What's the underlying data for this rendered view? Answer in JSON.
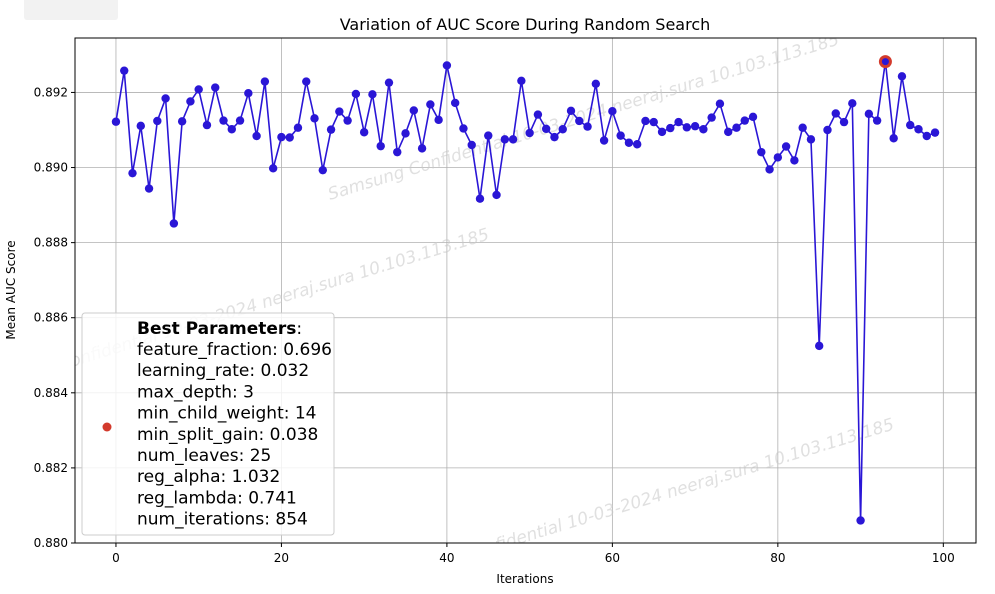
{
  "watermark": {
    "text": "Samsung Confidential 10-03-2024 neeraj.sura 10.103.113.185"
  },
  "chart_data": {
    "type": "line",
    "title": "Variation of AUC Score During Random Search",
    "xlabel": "Iterations",
    "ylabel": "Mean AUC Score",
    "xlim": [
      -4.95,
      103.95
    ],
    "ylim": [
      0.88,
      0.89345
    ],
    "xticks": [
      0,
      20,
      40,
      60,
      80,
      100
    ],
    "yticks": [
      0.88,
      0.882,
      0.884,
      0.886,
      0.888,
      0.89,
      0.892
    ],
    "ytick_labels": [
      "0.880",
      "0.882",
      "0.884",
      "0.886",
      "0.888",
      "0.890",
      "0.892"
    ],
    "grid": true,
    "legend_position": "lower-left",
    "series": [
      {
        "color": "#2a16d6",
        "marker": "circle",
        "x": [
          0,
          1,
          2,
          3,
          4,
          5,
          6,
          7,
          8,
          9,
          10,
          11,
          12,
          13,
          14,
          15,
          16,
          17,
          18,
          19,
          20,
          21,
          22,
          23,
          24,
          25,
          26,
          27,
          28,
          29,
          30,
          31,
          32,
          33,
          34,
          35,
          36,
          37,
          38,
          39,
          40,
          41,
          42,
          43,
          44,
          45,
          46,
          47,
          48,
          49,
          50,
          51,
          52,
          53,
          54,
          55,
          56,
          57,
          58,
          59,
          60,
          61,
          62,
          63,
          64,
          65,
          66,
          67,
          68,
          69,
          70,
          71,
          72,
          73,
          74,
          75,
          76,
          77,
          78,
          79,
          80,
          81,
          82,
          83,
          84,
          85,
          86,
          87,
          88,
          89,
          90,
          91,
          92,
          93,
          94,
          95,
          96,
          97,
          98,
          99
        ],
        "y": [
          0.89122,
          0.89258,
          0.88985,
          0.89111,
          0.88944,
          0.89124,
          0.89184,
          0.88851,
          0.89123,
          0.89176,
          0.89208,
          0.89113,
          0.89213,
          0.89125,
          0.89102,
          0.89125,
          0.89198,
          0.89084,
          0.89229,
          0.88998,
          0.89081,
          0.8908,
          0.89106,
          0.89229,
          0.89131,
          0.88993,
          0.89101,
          0.89149,
          0.89125,
          0.89196,
          0.89094,
          0.89195,
          0.89057,
          0.89226,
          0.89041,
          0.89091,
          0.89152,
          0.89051,
          0.89168,
          0.89127,
          0.89272,
          0.89172,
          0.89104,
          0.8906,
          0.88917,
          0.89085,
          0.88927,
          0.89075,
          0.89075,
          0.89231,
          0.89092,
          0.89141,
          0.89103,
          0.89081,
          0.89102,
          0.89151,
          0.89124,
          0.89109,
          0.89223,
          0.89072,
          0.8915,
          0.89085,
          0.89066,
          0.89062,
          0.89124,
          0.89121,
          0.89095,
          0.89105,
          0.89121,
          0.89107,
          0.8911,
          0.89102,
          0.89133,
          0.8917,
          0.89095,
          0.89106,
          0.89125,
          0.89135,
          0.89041,
          0.88995,
          0.89027,
          0.89056,
          0.89019,
          0.89106,
          0.89075,
          0.88525,
          0.891,
          0.89144,
          0.89121,
          0.89171,
          0.8806,
          0.89143,
          0.89125,
          0.89282,
          0.89078,
          0.89243,
          0.89113,
          0.89102,
          0.89084,
          0.89093
        ]
      }
    ],
    "best_point": {
      "x": 93,
      "y": 0.89282,
      "color": "#d33a2c"
    },
    "legend": {
      "marker_color": "#d33a2c",
      "heading": "Best Parameters",
      "heading_suffix": ":",
      "lines": [
        "feature_fraction: 0.696",
        "learning_rate: 0.032",
        "max_depth: 3",
        "min_child_weight: 14",
        "min_split_gain: 0.038",
        "num_leaves: 25",
        "reg_alpha: 1.032",
        "reg_lambda: 0.741",
        "num_iterations: 854"
      ]
    }
  }
}
